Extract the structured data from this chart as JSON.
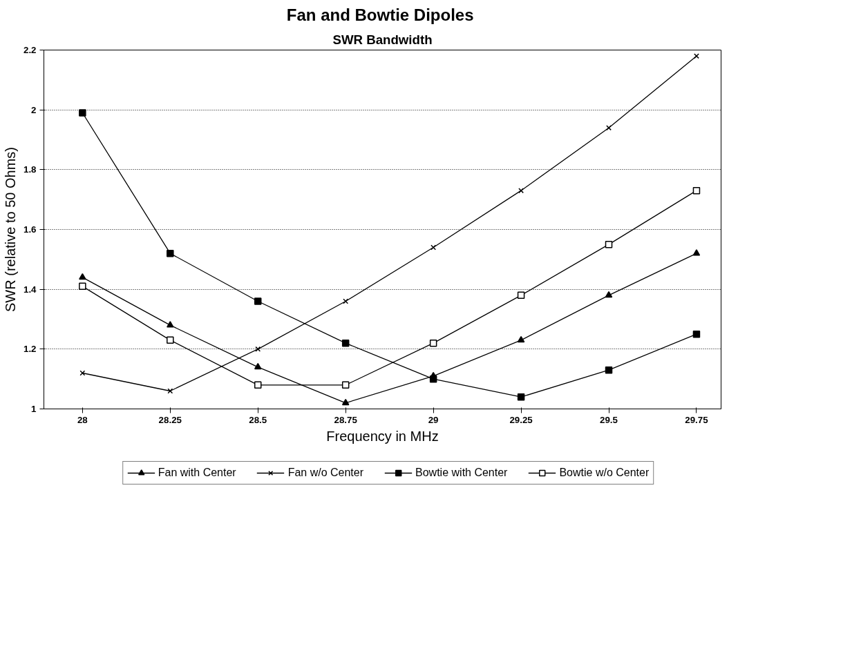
{
  "chart_data": {
    "type": "line",
    "title": "Fan and Bowtie  Dipoles",
    "subtitle": "SWR Bandwidth",
    "xlabel": "Frequency in MHz",
    "ylabel": "SWR (relative to 50 Ohms)",
    "x": [
      28,
      28.25,
      28.5,
      28.75,
      29,
      29.25,
      29.5,
      29.75
    ],
    "xlim": [
      27.89,
      29.82
    ],
    "xticks": [
      28,
      28.25,
      28.5,
      28.75,
      29,
      29.25,
      29.5,
      29.75
    ],
    "ylim": [
      1,
      2.2
    ],
    "yticks": [
      1,
      1.2,
      1.4,
      1.6,
      1.8,
      2,
      2.2
    ],
    "grid": "y",
    "legend": "bottom",
    "line_style": "solid",
    "series": [
      {
        "name": "Fan with Center",
        "color": "#000000",
        "marker": "triangle",
        "values": [
          1.44,
          1.28,
          1.14,
          1.02,
          1.11,
          1.23,
          1.38,
          1.52
        ]
      },
      {
        "name": "Fan w/o Center",
        "color": "#000000",
        "marker": "cross",
        "values": [
          1.12,
          1.06,
          1.2,
          1.36,
          1.54,
          1.73,
          1.94,
          2.18
        ]
      },
      {
        "name": "Bowtie with Center",
        "color": "#000000",
        "marker": "square",
        "values": [
          1.99,
          1.52,
          1.36,
          1.22,
          1.1,
          1.04,
          1.13,
          1.25
        ]
      },
      {
        "name": "Bowtie w/o Center",
        "color": "#000000",
        "marker": "square",
        "values": [
          1.41,
          1.23,
          1.08,
          1.08,
          1.22,
          1.38,
          1.55,
          1.73
        ]
      }
    ]
  }
}
